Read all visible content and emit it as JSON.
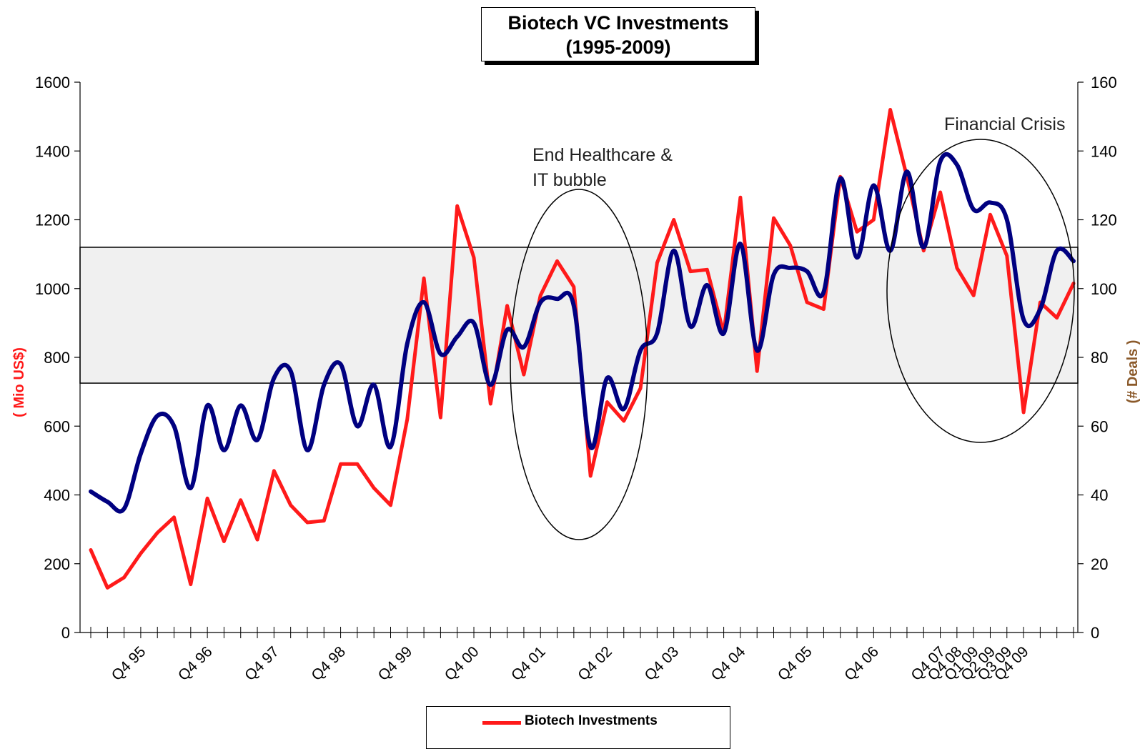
{
  "chart_data": {
    "type": "line",
    "title": "Biotech VC Investments",
    "subtitle": "(1995-2009)",
    "y_left_label": "( Mio US$)",
    "y_right_label": "(# Deals )",
    "y_left_range": [
      0,
      1600
    ],
    "y_right_range": [
      0,
      160
    ],
    "y_left_ticks": [
      "0",
      "200",
      "400",
      "600",
      "800",
      "1000",
      "1200",
      "1400",
      "1600"
    ],
    "y_right_ticks": [
      "0",
      "20",
      "40",
      "60",
      "80",
      "100",
      "120",
      "140",
      "160"
    ],
    "x_tick_labels": [
      "Q4 95",
      "Q4 96",
      "Q4 97",
      "Q4 98",
      "Q4 99",
      "Q4 00",
      "Q4 01",
      "Q4 02",
      "Q4 03",
      "Q4 04",
      "Q4 05",
      "Q4 06",
      "Q4 07",
      "Q4 08",
      "Q1 09",
      "Q2 09",
      "Q3 09",
      "Q4 09"
    ],
    "band": {
      "y_from": 725,
      "y_to": 1120,
      "fill": "#f0f0f0"
    },
    "series": [
      {
        "name": "Biotech Investments",
        "axis": "left",
        "color": "#ff1a1a",
        "values": [
          240,
          130,
          160,
          230,
          290,
          335,
          140,
          390,
          265,
          385,
          270,
          470,
          370,
          320,
          325,
          490,
          490,
          420,
          370,
          620,
          1030,
          625,
          1240,
          1090,
          665,
          950,
          750,
          980,
          1080,
          1005,
          455,
          670,
          615,
          710,
          1075,
          1200,
          1050,
          1055,
          870,
          1265,
          760,
          1205,
          1125,
          960,
          940,
          1325,
          1165,
          1200,
          1520,
          1325,
          1110,
          1280,
          1060,
          980,
          1215,
          1095,
          640,
          960,
          915,
          1015
        ]
      },
      {
        "axis": "right",
        "color": "#000080",
        "values": [
          41,
          38,
          36,
          52,
          63,
          60,
          42,
          66,
          53,
          66,
          56,
          74,
          76,
          53,
          72,
          78,
          60,
          72,
          54,
          84,
          96,
          81,
          86,
          90,
          72,
          88,
          83,
          96,
          97,
          95,
          54,
          74,
          65,
          82,
          87,
          111,
          89,
          101,
          87,
          113,
          82,
          104,
          106,
          105,
          99,
          132,
          109,
          130,
          111,
          134,
          112,
          137,
          136,
          123,
          125,
          120,
          91,
          94,
          111,
          108
        ]
      }
    ],
    "annotations": [
      {
        "text": "End Healthcare &",
        "line": 1
      },
      {
        "text": "IT bubble",
        "line": 2
      },
      {
        "text": "Financial Crisis",
        "line": 1
      }
    ],
    "legend_position": "bottom",
    "grid": false
  }
}
